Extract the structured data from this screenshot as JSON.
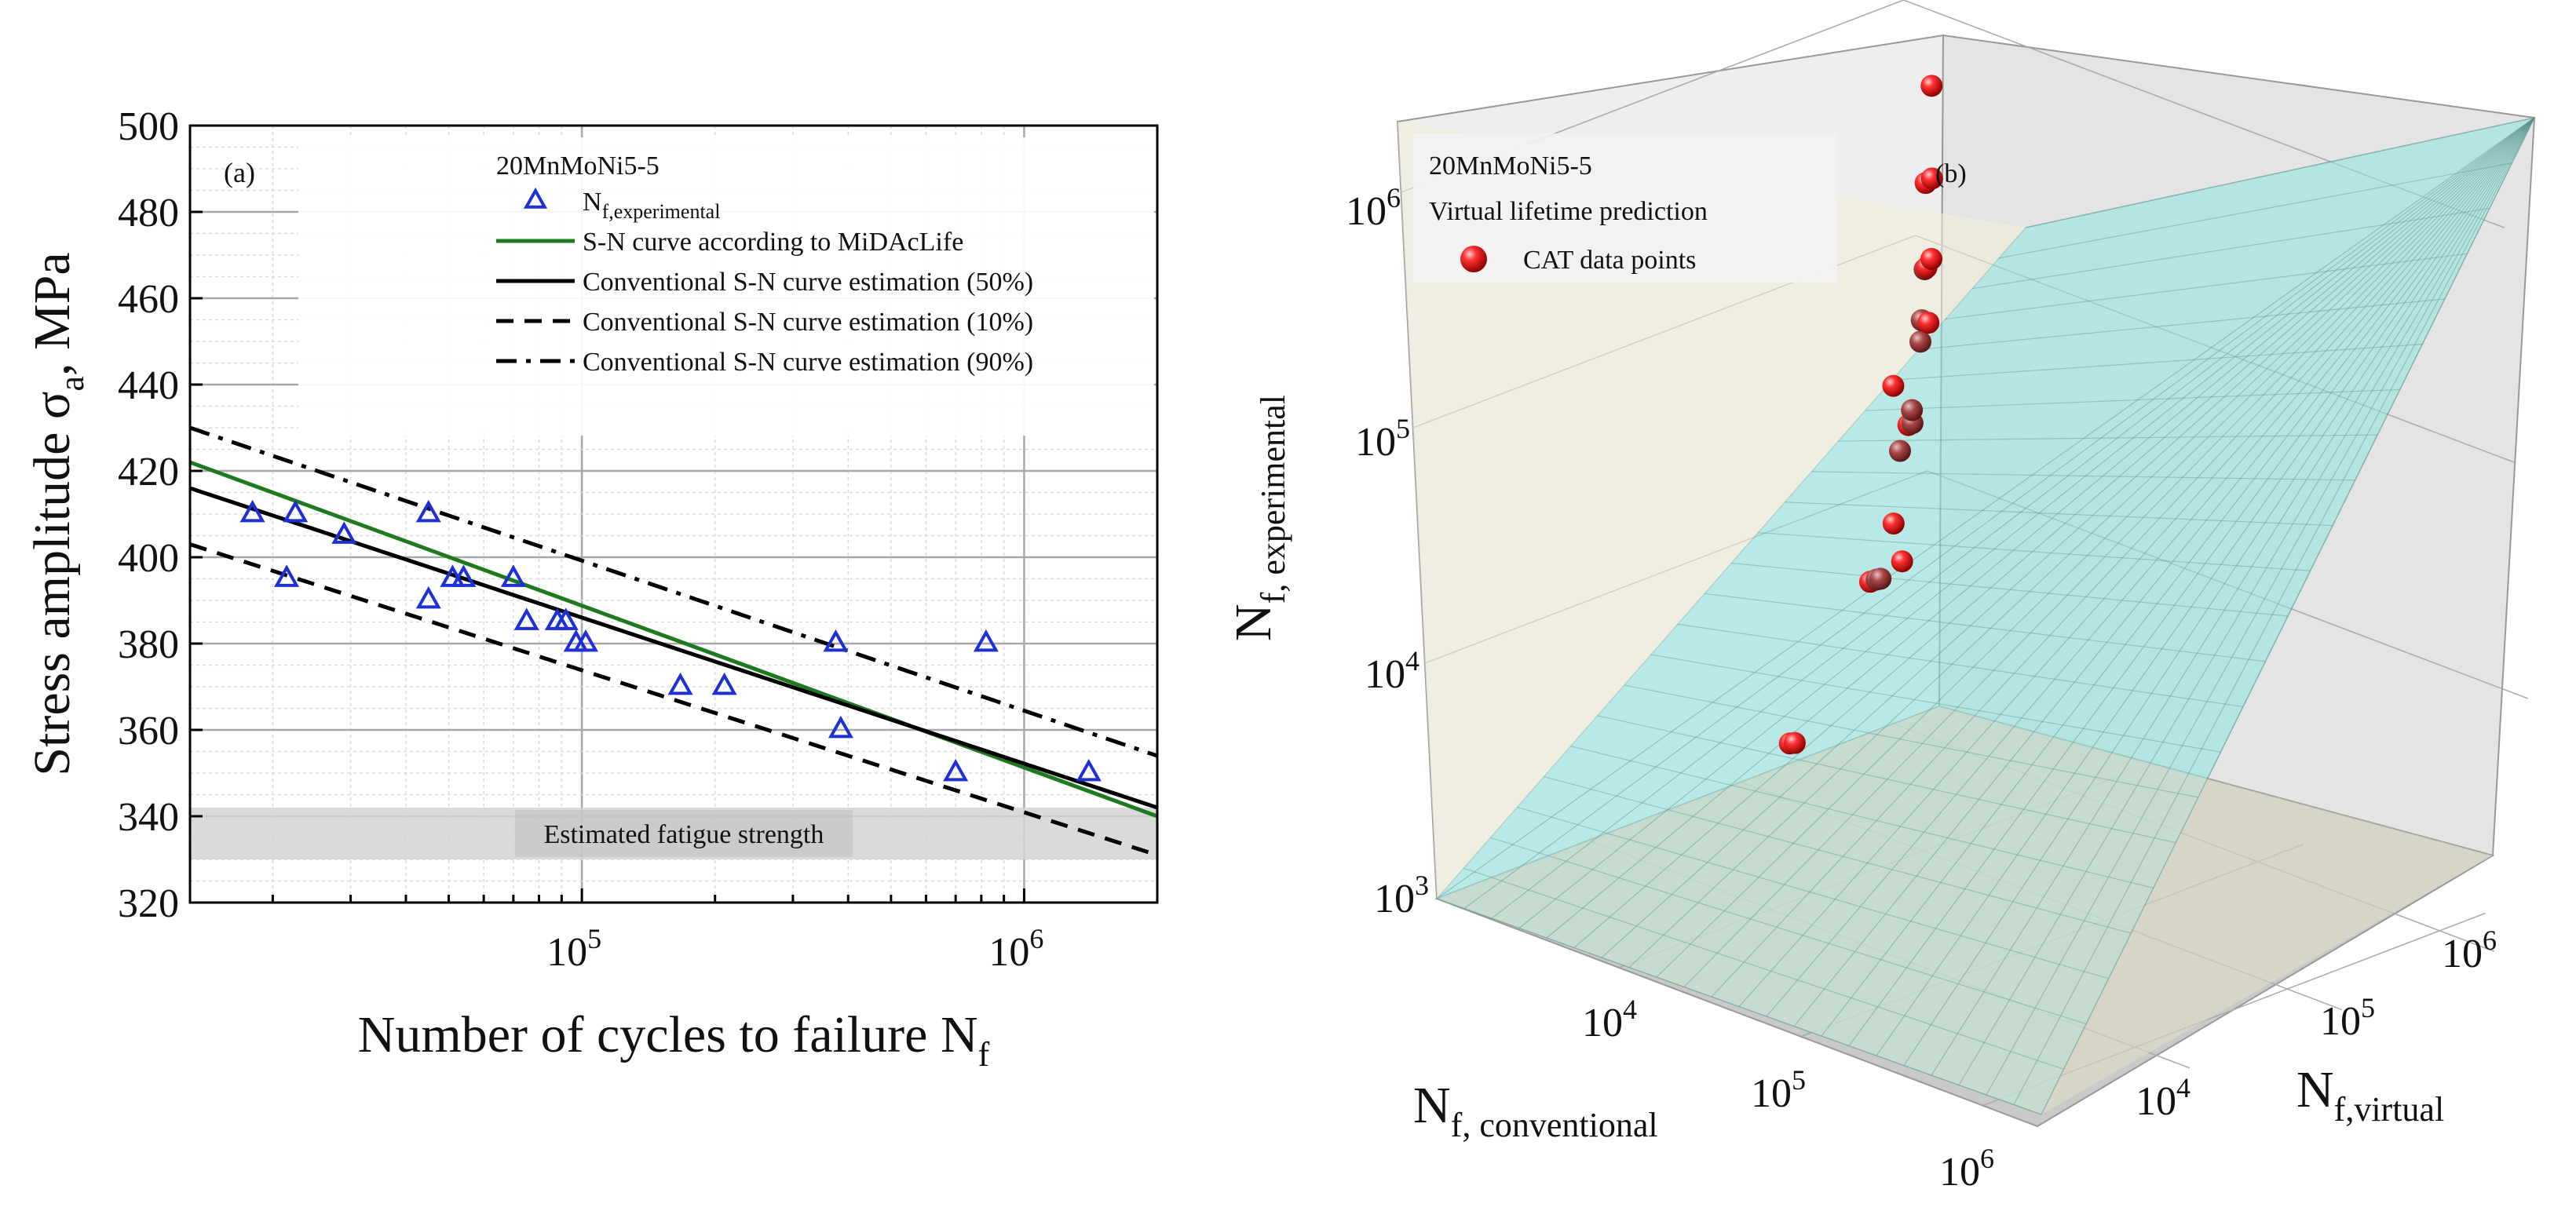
{
  "chart_data": [
    {
      "type": "scatter",
      "panel_label": "(a)",
      "xscale": "log",
      "xlim": [
        13000,
        2000000
      ],
      "ylim": [
        320,
        500
      ],
      "xlabel": "Number of cycles to failure N",
      "xlabel_sub": "f",
      "ylabel": "Stress amplitude σ",
      "ylabel_sub": "a",
      "ylabel_unit": ", MPa",
      "x_ticks": [
        {
          "base": "10",
          "exp": "5",
          "value": 100000
        },
        {
          "base": "10",
          "exp": "6",
          "value": 1000000
        }
      ],
      "y_ticks": [
        320,
        340,
        360,
        380,
        400,
        420,
        440,
        460,
        480,
        500
      ],
      "grid": true,
      "legend_title": "20MnMoNi5-5",
      "legend": [
        {
          "label": "N",
          "sub": "f,experimental",
          "style": "triangle",
          "color": "#1f2fd6"
        },
        {
          "label": "S-N curve according to MiDAcLife",
          "style": "solid",
          "color": "#1f7a1f"
        },
        {
          "label": "Conventional S-N curve estimation (50%)",
          "style": "solid",
          "color": "#000000"
        },
        {
          "label": "Conventional S-N curve estimation (10%)",
          "style": "dashed",
          "color": "#000000"
        },
        {
          "label": "Conventional S-N curve estimation (90%)",
          "style": "dashdot",
          "color": "#000000"
        }
      ],
      "series": [
        {
          "name": "N_f,experimental",
          "kind": "points",
          "color": "#1f2fd6",
          "points": [
            [
              18000,
              410
            ],
            [
              21500,
              395
            ],
            [
              22500,
              410
            ],
            [
              29000,
              405
            ],
            [
              45000,
              390
            ],
            [
              45000,
              410
            ],
            [
              51000,
              395
            ],
            [
              54000,
              395
            ],
            [
              70000,
              395
            ],
            [
              75000,
              385
            ],
            [
              88000,
              385
            ],
            [
              92000,
              385
            ],
            [
              97000,
              380
            ],
            [
              102000,
              380
            ],
            [
              167000,
              370
            ],
            [
              210000,
              370
            ],
            [
              375000,
              380
            ],
            [
              385000,
              360
            ],
            [
              700000,
              350
            ],
            [
              820000,
              380
            ],
            [
              1400000,
              350
            ]
          ]
        },
        {
          "name": "S-N curve according to MiDAcLife",
          "kind": "line",
          "color": "#1f7a1f",
          "points": [
            [
              13000,
              422
            ],
            [
              2000000,
              340
            ]
          ]
        },
        {
          "name": "Conventional S-N curve estimation (50%)",
          "kind": "line",
          "color": "#000000",
          "points": [
            [
              13000,
              416
            ],
            [
              2000000,
              342
            ]
          ]
        },
        {
          "name": "Conventional S-N curve estimation (10%)",
          "kind": "line",
          "style": "dashed",
          "color": "#000000",
          "points": [
            [
              13000,
              403
            ],
            [
              2000000,
              331
            ]
          ]
        },
        {
          "name": "Conventional S-N curve estimation (90%)",
          "kind": "line",
          "style": "dashdot",
          "color": "#000000",
          "points": [
            [
              13000,
              430
            ],
            [
              2000000,
              354
            ]
          ]
        }
      ],
      "band": {
        "label": "Estimated fatigue strength",
        "y_range": [
          330,
          342
        ],
        "color": "#d0d0d0"
      }
    },
    {
      "type": "scatter3d",
      "panel_label": "(b)",
      "legend_title": "20MnMoNi5-5",
      "legend_subtitle": "Virtual lifetime prediction",
      "legend": [
        {
          "label": "CAT data points",
          "color": "#e01010"
        }
      ],
      "axes": {
        "z_label": "N",
        "z_label_sub": "f, experimental",
        "x_label": "N",
        "x_label_sub": "f, conventional",
        "y_label": "N",
        "y_label_sub": "f,virtual",
        "z_ticks": [
          {
            "base": "10",
            "exp": "3"
          },
          {
            "base": "10",
            "exp": "4"
          },
          {
            "base": "10",
            "exp": "5"
          },
          {
            "base": "10",
            "exp": "6"
          }
        ],
        "x_ticks": [
          {
            "base": "10",
            "exp": "4"
          },
          {
            "base": "10",
            "exp": "5"
          },
          {
            "base": "10",
            "exp": "6"
          }
        ],
        "y_ticks": [
          {
            "base": "10",
            "exp": "4"
          },
          {
            "base": "10",
            "exp": "5"
          },
          {
            "base": "10",
            "exp": "6"
          }
        ],
        "range_log10": [
          3,
          6.3
        ]
      },
      "surface_color": "#7fe0dc",
      "points_log10": [
        [
          4.5,
          3.6,
          3.95
        ],
        [
          4.51,
          3.62,
          3.95
        ],
        [
          4.3,
          4.4,
          4.38
        ],
        [
          4.25,
          4.5,
          4.35
        ],
        [
          4.22,
          4.56,
          4.33
        ],
        [
          4.1,
          4.8,
          4.47
        ],
        [
          4.05,
          4.9,
          4.27
        ],
        [
          4.2,
          4.75,
          4.82
        ],
        [
          3.95,
          5.1,
          4.77
        ],
        [
          3.93,
          5.15,
          4.76
        ],
        [
          3.8,
          5.3,
          4.74
        ],
        [
          3.92,
          5.05,
          4.94
        ],
        [
          3.78,
          5.4,
          5.0
        ],
        [
          3.75,
          5.45,
          5.07
        ],
        [
          3.7,
          5.55,
          5.02
        ],
        [
          3.65,
          5.6,
          5.22
        ],
        [
          3.4,
          5.9,
          5.08
        ],
        [
          3.3,
          6.05,
          5.05
        ],
        [
          3.55,
          5.75,
          5.52
        ],
        [
          3.5,
          5.85,
          5.5
        ],
        [
          3.35,
          6.05,
          5.8
        ],
        [
          3.2,
          6.2,
          6.15
        ],
        [
          3.1,
          6.3,
          6.12
        ]
      ]
    }
  ]
}
